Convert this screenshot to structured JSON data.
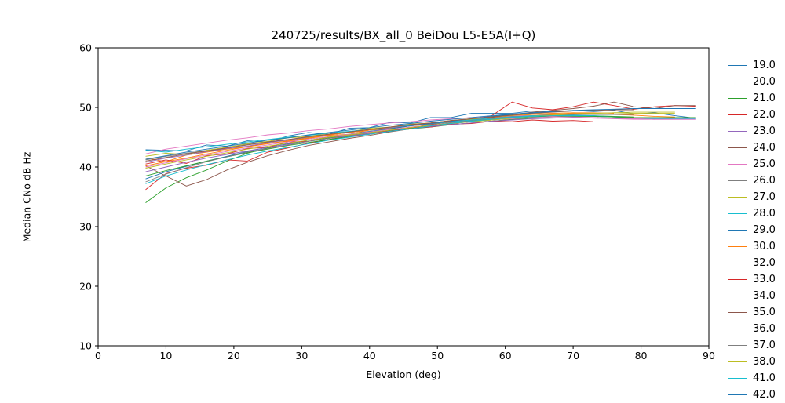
{
  "chart_data": {
    "type": "line",
    "title": "240725/results/BX_all_0 BeiDou L5-E5A(I+Q)",
    "xlabel": "Elevation (deg)",
    "ylabel": "Median CNo dB Hz",
    "xlim": [
      0,
      90
    ],
    "ylim": [
      10,
      60
    ],
    "xticks": [
      0,
      10,
      20,
      30,
      40,
      50,
      60,
      70,
      80,
      90
    ],
    "yticks": [
      10,
      20,
      30,
      40,
      50,
      60
    ],
    "grid": false,
    "legend_position": "right-outside",
    "x0": 7,
    "dx": 3,
    "series": [
      {
        "name": "19.0",
        "color": "#1f77b4",
        "values": [
          42.9,
          42.8,
          42.7,
          43.7,
          43.5,
          44.4,
          44.2,
          45.2,
          45.8,
          45.5,
          46.5,
          46.6,
          47.5,
          47.4,
          48.3,
          48.3,
          49.0,
          49.0,
          49.0,
          49.4,
          49.2,
          49.5,
          49.3,
          49.5,
          48.9,
          49.1,
          48.6,
          48.2
        ]
      },
      {
        "name": "20.0",
        "color": "#ff7f0e",
        "values": [
          41.5,
          40.9,
          42.0,
          42.5,
          43.0,
          43.4,
          44.0,
          44.3,
          44.8,
          45.3,
          45.5,
          46.2,
          46.4,
          46.9,
          47.2,
          47.7,
          47.9,
          48.3,
          48.5,
          48.8,
          48.8,
          49.0,
          48.9,
          48.8,
          48.7,
          48.5,
          48.4
        ]
      },
      {
        "name": "21.0",
        "color": "#2ca02c",
        "values": [
          34.0,
          36.5,
          38.2,
          39.5,
          41.0,
          42.3,
          43.2,
          43.9,
          44.5,
          44.9,
          45.3,
          45.8,
          46.1,
          46.5,
          46.9,
          47.3,
          47.6,
          47.9,
          48.2,
          48.4,
          48.5,
          48.6,
          48.6,
          48.5,
          48.4
        ]
      },
      {
        "name": "22.0",
        "color": "#d62728",
        "values": [
          36.2,
          38.9,
          39.8,
          40.3,
          41.2,
          41.0,
          42.5,
          43.2,
          44.0,
          44.6,
          45.2,
          45.5,
          46.2,
          46.6,
          47.1,
          47.6,
          48.0,
          48.6,
          50.9,
          49.9,
          49.6,
          50.1,
          50.9,
          50.3,
          49.7,
          50.1,
          50.3,
          50.2
        ]
      },
      {
        "name": "23.0",
        "color": "#9467bd",
        "values": [
          40.8,
          41.5,
          42.0,
          42.6,
          43.1,
          43.5,
          44.1,
          44.5,
          45.0,
          45.4,
          45.8,
          46.2,
          46.6,
          47.0,
          47.3,
          47.6,
          48.0,
          48.2,
          48.5,
          48.6,
          48.7,
          48.6,
          48.5,
          48.4,
          48.3,
          48.2,
          48.2
        ]
      },
      {
        "name": "24.0",
        "color": "#8c564b",
        "values": [
          40.2,
          38.5,
          36.8,
          37.9,
          39.5,
          40.8,
          41.9,
          42.8,
          43.6,
          44.2,
          44.8,
          45.3,
          45.9,
          46.4,
          46.8,
          47.3,
          47.8,
          48.3,
          48.8,
          49.2,
          49.5,
          49.8,
          50.2,
          50.9,
          50.1,
          49.8,
          50.3,
          50.3
        ]
      },
      {
        "name": "25.0",
        "color": "#e377c2",
        "values": [
          42.2,
          43.0,
          43.5,
          44.0,
          44.5,
          44.9,
          45.4,
          45.7,
          46.1,
          46.4,
          46.8,
          47.1,
          47.4,
          47.6,
          47.9,
          48.1,
          48.3,
          48.5,
          48.6,
          48.6,
          48.5,
          48.4,
          48.2,
          48.1,
          48.0,
          48.0
        ]
      },
      {
        "name": "26.0",
        "color": "#7f7f7f",
        "values": [
          41.2,
          41.8,
          42.3,
          42.8,
          43.3,
          43.8,
          44.2,
          44.6,
          45.0,
          45.4,
          45.8,
          46.2,
          46.5,
          46.9,
          47.2,
          47.5,
          47.8,
          48.1,
          48.4,
          48.6,
          48.7,
          48.8,
          48.8,
          48.8,
          48.8
        ]
      },
      {
        "name": "27.0",
        "color": "#bcbd22",
        "values": [
          41.8,
          42.3,
          42.1,
          42.8,
          43.3,
          43.9,
          44.3,
          44.9,
          45.1,
          45.7,
          45.9,
          46.5,
          46.7,
          47.2,
          47.4,
          47.8,
          48.0,
          48.4,
          48.6,
          48.9,
          49.0,
          49.1,
          49.0,
          49.1,
          49.0,
          49.0,
          49.0
        ]
      },
      {
        "name": "28.0",
        "color": "#17becf",
        "values": [
          42.8,
          42.5,
          43.0,
          43.4,
          43.8,
          44.2,
          44.6,
          45.0,
          45.3,
          45.7,
          46.0,
          46.3,
          46.7,
          47.0,
          47.3,
          47.6,
          47.9,
          48.2,
          48.4,
          48.6,
          48.7,
          48.7,
          48.6,
          48.4,
          48.2,
          48.1,
          48.1,
          48.1
        ]
      },
      {
        "name": "29.0",
        "color": "#1f77b4",
        "values": [
          38.0,
          39.2,
          40.1,
          41.0,
          41.8,
          42.6,
          43.3,
          43.9,
          44.5,
          45.0,
          45.5,
          46.0,
          46.4,
          46.9,
          47.3,
          47.7,
          48.1,
          48.5,
          48.8,
          49.1,
          49.3,
          49.4,
          49.5
        ]
      },
      {
        "name": "30.0",
        "color": "#ff7f0e",
        "values": [
          40.2,
          40.9,
          41.5,
          42.2,
          42.8,
          43.4,
          43.9,
          44.4,
          44.9,
          45.4,
          45.8,
          46.2,
          46.7,
          47.1,
          47.4,
          47.8,
          48.1,
          48.4,
          48.7,
          48.9,
          49.0,
          49.1,
          49.1,
          49.0
        ]
      },
      {
        "name": "32.0",
        "color": "#2ca02c",
        "values": [
          38.5,
          39.4,
          40.2,
          41.0,
          41.7,
          42.4,
          43.0,
          43.6,
          44.1,
          44.6,
          45.1,
          45.5,
          46.0,
          46.4,
          46.7,
          47.1,
          47.4,
          47.7,
          48.0,
          48.2,
          48.4,
          48.5,
          48.5,
          48.4,
          48.3,
          48.3,
          48.3,
          48.3
        ]
      },
      {
        "name": "33.0",
        "color": "#d62728",
        "values": [
          40.5,
          41.2,
          40.6,
          41.9,
          42.2,
          43.1,
          43.3,
          44.2,
          44.3,
          45.1,
          45.2,
          45.9,
          46.0,
          46.6,
          46.7,
          47.2,
          47.3,
          47.7,
          47.6,
          47.9,
          47.7,
          47.8,
          47.6
        ]
      },
      {
        "name": "34.0",
        "color": "#9467bd",
        "values": [
          39.2,
          40.0,
          40.8,
          41.5,
          42.1,
          42.7,
          43.3,
          43.8,
          44.3,
          44.8,
          45.2,
          45.6,
          46.0,
          46.4,
          46.8,
          47.1,
          47.4,
          47.7,
          47.9,
          48.1,
          48.2,
          48.3,
          48.3,
          48.2,
          48.1,
          48.0,
          48.0,
          48.0
        ]
      },
      {
        "name": "35.0",
        "color": "#8c564b",
        "values": [
          41.0,
          41.6,
          42.2,
          42.7,
          43.2,
          43.7,
          44.2,
          44.6,
          45.1,
          45.5,
          45.9,
          46.3,
          46.7,
          47.1,
          47.4,
          47.8,
          48.1,
          48.4,
          48.7,
          49.0,
          49.2,
          49.4,
          49.5,
          49.6,
          49.6
        ]
      },
      {
        "name": "36.0",
        "color": "#e377c2",
        "values": [
          40.0,
          40.7,
          41.4,
          42.0,
          42.6,
          43.2,
          43.7,
          44.2,
          44.7,
          45.1,
          45.5,
          45.9,
          46.3,
          46.7,
          47.0,
          47.3,
          47.6,
          47.9,
          48.1,
          48.3,
          48.4,
          48.4,
          48.3,
          48.2,
          48.1,
          48.0,
          48.0,
          48.0
        ]
      },
      {
        "name": "37.0",
        "color": "#7f7f7f",
        "values": [
          37.5,
          38.8,
          39.9,
          40.9,
          41.7,
          42.5,
          43.1,
          43.7,
          44.3,
          44.8,
          45.3,
          45.7,
          46.2,
          46.6,
          47.0,
          47.4,
          47.7,
          48.0,
          48.3,
          48.5,
          48.7,
          48.8,
          48.9,
          48.9
        ]
      },
      {
        "name": "38.0",
        "color": "#bcbd22",
        "values": [
          39.8,
          40.5,
          41.2,
          41.8,
          42.4,
          43.0,
          43.5,
          44.0,
          44.5,
          45.0,
          45.4,
          45.8,
          46.2,
          46.6,
          47.0,
          47.3,
          47.6,
          47.9,
          48.2,
          48.5,
          48.7,
          48.9,
          49.0,
          49.1,
          49.2,
          49.2,
          49.2
        ]
      },
      {
        "name": "41.0",
        "color": "#17becf",
        "values": [
          37.2,
          38.5,
          39.5,
          40.4,
          41.2,
          42.0,
          42.7,
          43.3,
          43.9,
          44.5,
          45.0,
          45.5,
          46.0,
          46.4,
          46.9,
          47.3,
          47.7,
          48.0,
          48.3,
          48.5,
          48.6,
          48.6,
          48.6
        ]
      },
      {
        "name": "42.0",
        "color": "#1f77b4",
        "values": [
          41.3,
          41.9,
          42.5,
          43.0,
          43.5,
          44.0,
          44.5,
          44.9,
          45.4,
          45.8,
          46.2,
          46.6,
          47.0,
          47.3,
          47.7,
          48.0,
          48.3,
          48.6,
          48.9,
          49.1,
          49.3,
          49.5,
          49.6,
          49.7,
          49.8,
          49.8,
          49.8,
          49.8
        ]
      }
    ]
  }
}
